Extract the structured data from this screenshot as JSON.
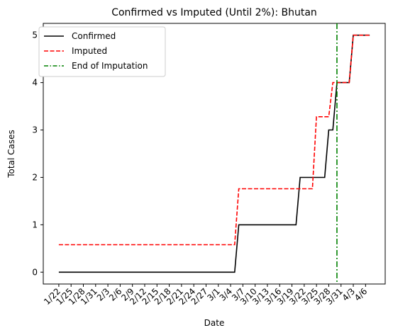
{
  "chart_data": {
    "type": "line",
    "title": "Confirmed vs Imputed (Until 2%): Bhutan",
    "xlabel": "Date",
    "ylabel": "Total Cases",
    "ylim": [
      -0.25,
      5.25
    ],
    "yticks": [
      0,
      1,
      2,
      3,
      4,
      5
    ],
    "x_start": "2020-01-22",
    "x_end": "2020-04-07",
    "xtick_labels": [
      "1/22",
      "1/25",
      "1/28",
      "1/31",
      "2/3",
      "2/6",
      "2/9",
      "2/12",
      "2/15",
      "2/18",
      "2/21",
      "2/24",
      "2/27",
      "3/1",
      "3/4",
      "3/7",
      "3/10",
      "3/13",
      "3/16",
      "3/19",
      "3/22",
      "3/25",
      "3/28",
      "3/31",
      "4/3",
      "4/6"
    ],
    "legend_position": "upper-left",
    "grid": false,
    "series": [
      {
        "name": "Confirmed",
        "color": "#000000",
        "style": "solid",
        "points": [
          [
            "2020-01-22",
            0
          ],
          [
            "2020-03-05",
            0
          ],
          [
            "2020-03-06",
            1
          ],
          [
            "2020-03-20",
            1
          ],
          [
            "2020-03-21",
            2
          ],
          [
            "2020-03-27",
            2
          ],
          [
            "2020-03-28",
            3
          ],
          [
            "2020-03-29",
            3
          ],
          [
            "2020-03-30",
            4
          ],
          [
            "2020-04-02",
            4
          ],
          [
            "2020-04-03",
            5
          ],
          [
            "2020-04-07",
            5
          ]
        ]
      },
      {
        "name": "Imputed",
        "color": "#ff0000",
        "style": "dashed",
        "points": [
          [
            "2020-01-22",
            0.58
          ],
          [
            "2020-03-05",
            0.58
          ],
          [
            "2020-03-06",
            1.76
          ],
          [
            "2020-03-24",
            1.76
          ],
          [
            "2020-03-25",
            3.28
          ],
          [
            "2020-03-28",
            3.28
          ],
          [
            "2020-03-29",
            4
          ],
          [
            "2020-04-02",
            4
          ],
          [
            "2020-04-03",
            5
          ],
          [
            "2020-04-07",
            5
          ]
        ]
      }
    ],
    "vline": {
      "name": "End of Imputation",
      "x": "2020-03-30",
      "color": "#008000",
      "style": "dashdot"
    }
  }
}
